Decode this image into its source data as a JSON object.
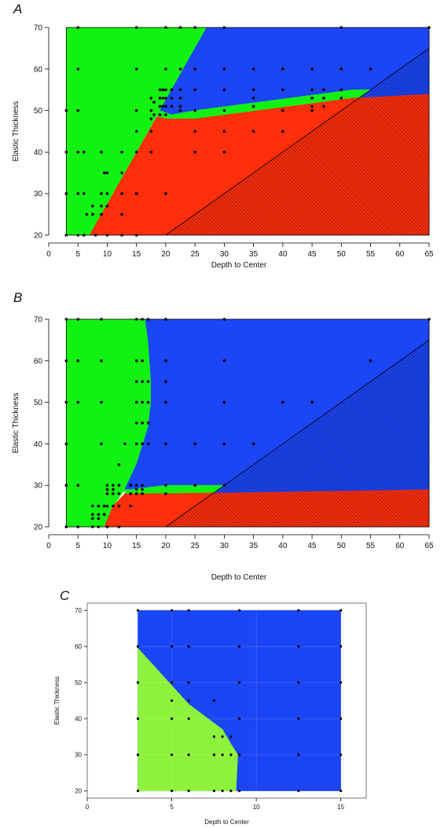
{
  "figure": {
    "panels": [
      {
        "letter": "A"
      },
      {
        "letter": "B"
      },
      {
        "letter": "C"
      }
    ]
  },
  "colors": {
    "green": "#12f212",
    "blue": "#1c45f6",
    "red": "#ff2e0b",
    "light_green": "#8ef23c",
    "hatch_red": "#7a1a08",
    "hatch_blue": "#0d2277",
    "point": "#000000"
  },
  "chart_data": [
    {
      "type": "scatter",
      "panel": "A",
      "xlabel": "Depth to Center",
      "ylabel": "Elastic Thickness",
      "xlim": [
        0,
        65
      ],
      "ylim": [
        20,
        70
      ],
      "xticks": [
        0,
        5,
        10,
        15,
        20,
        25,
        30,
        35,
        40,
        45,
        50,
        55,
        60,
        65
      ],
      "yticks": [
        20,
        30,
        40,
        50,
        60,
        70
      ],
      "points": [
        [
          3,
          20
        ],
        [
          3,
          30
        ],
        [
          3,
          40
        ],
        [
          3,
          50
        ],
        [
          5,
          70
        ],
        [
          5,
          60
        ],
        [
          5,
          50
        ],
        [
          5,
          40
        ],
        [
          5,
          30
        ],
        [
          5,
          20
        ],
        [
          6,
          40
        ],
        [
          6,
          30
        ],
        [
          6,
          20
        ],
        [
          6.5,
          25
        ],
        [
          7.5,
          27
        ],
        [
          7.5,
          25
        ],
        [
          8,
          20
        ],
        [
          9,
          40
        ],
        [
          9,
          30
        ],
        [
          9,
          27
        ],
        [
          9,
          25
        ],
        [
          9.5,
          35
        ],
        [
          10,
          35
        ],
        [
          10,
          30
        ],
        [
          10,
          27
        ],
        [
          10,
          20
        ],
        [
          12.5,
          40
        ],
        [
          12.5,
          35
        ],
        [
          12.5,
          30
        ],
        [
          12.5,
          25
        ],
        [
          12.5,
          20
        ],
        [
          15,
          70
        ],
        [
          15,
          60
        ],
        [
          15,
          50
        ],
        [
          15,
          45
        ],
        [
          15,
          40
        ],
        [
          15,
          30
        ],
        [
          15,
          20
        ],
        [
          17.5,
          53
        ],
        [
          17.5,
          50
        ],
        [
          17.5,
          48
        ],
        [
          17.5,
          45
        ],
        [
          17.5,
          40
        ],
        [
          18,
          52
        ],
        [
          18,
          49
        ],
        [
          19,
          55
        ],
        [
          19,
          53
        ],
        [
          19,
          51
        ],
        [
          19,
          49
        ],
        [
          19.5,
          55
        ],
        [
          19.5,
          53
        ],
        [
          19.5,
          51
        ],
        [
          20,
          70
        ],
        [
          20,
          60
        ],
        [
          20,
          55
        ],
        [
          20,
          53
        ],
        [
          20,
          51
        ],
        [
          20,
          49
        ],
        [
          20,
          30
        ],
        [
          21,
          55
        ],
        [
          21,
          53
        ],
        [
          21,
          51
        ],
        [
          22.5,
          70
        ],
        [
          22.5,
          60
        ],
        [
          22.5,
          55
        ],
        [
          22.5,
          53
        ],
        [
          22.5,
          51
        ],
        [
          22.5,
          50
        ],
        [
          25,
          70
        ],
        [
          25,
          60
        ],
        [
          25,
          55
        ],
        [
          25,
          50
        ],
        [
          25,
          45
        ],
        [
          25,
          40
        ],
        [
          30,
          70
        ],
        [
          30,
          60
        ],
        [
          30,
          55
        ],
        [
          30,
          50
        ],
        [
          30,
          45
        ],
        [
          30,
          40
        ],
        [
          35,
          60
        ],
        [
          35,
          55
        ],
        [
          35,
          53
        ],
        [
          35,
          51
        ],
        [
          35,
          45
        ],
        [
          40,
          60
        ],
        [
          40,
          55
        ],
        [
          40,
          50
        ],
        [
          40,
          45
        ],
        [
          45,
          60
        ],
        [
          45,
          55
        ],
        [
          45,
          53
        ],
        [
          45,
          51
        ],
        [
          45,
          50
        ],
        [
          47,
          55
        ],
        [
          47,
          53
        ],
        [
          47,
          51
        ],
        [
          50,
          70
        ],
        [
          50,
          60
        ],
        [
          50,
          55
        ],
        [
          50,
          53
        ],
        [
          55,
          60
        ],
        [
          65,
          70
        ]
      ],
      "regions": [
        {
          "color": "green",
          "polygon": [
            [
              3,
              20
            ],
            [
              3,
              70
            ],
            [
              27,
              70
            ],
            [
              19,
              50
            ],
            [
              7,
              20
            ]
          ]
        },
        {
          "color": "blue",
          "polygon": [
            [
              27,
              70
            ],
            [
              65,
              70
            ],
            [
              65,
              55
            ],
            [
              52,
              55
            ],
            [
              25,
              50
            ],
            [
              21,
              49
            ],
            [
              19,
              50
            ]
          ]
        },
        {
          "color": "green",
          "polygon": [
            [
              19,
              50
            ],
            [
              21,
              49
            ],
            [
              25,
              50
            ],
            [
              52,
              55
            ],
            [
              65,
              55
            ],
            [
              65,
              54
            ],
            [
              52,
              53
            ],
            [
              25,
              48
            ],
            [
              20,
              48
            ],
            [
              18.5,
              48.5
            ]
          ]
        },
        {
          "color": "red",
          "polygon": [
            [
              7,
              20
            ],
            [
              18.5,
              48.5
            ],
            [
              20,
              48
            ],
            [
              25,
              48
            ],
            [
              52,
              53
            ],
            [
              65,
              54
            ],
            [
              65,
              20
            ]
          ]
        }
      ],
      "hatched_triangle": {
        "polygon": [
          [
            20,
            20
          ],
          [
            65,
            20
          ],
          [
            65,
            65
          ]
        ]
      }
    },
    {
      "type": "scatter",
      "panel": "B",
      "xlabel": "Depth to Center",
      "ylabel": "Elastic Thickness",
      "xlim": [
        0,
        65
      ],
      "ylim": [
        20,
        70
      ],
      "xticks": [
        0,
        5,
        10,
        15,
        20,
        25,
        30,
        35,
        40,
        45,
        50,
        55,
        60,
        65
      ],
      "yticks": [
        20,
        30,
        40,
        50,
        60,
        70
      ],
      "points": [
        [
          3,
          70
        ],
        [
          3,
          60
        ],
        [
          3,
          50
        ],
        [
          3,
          40
        ],
        [
          3,
          30
        ],
        [
          3,
          20
        ],
        [
          5,
          70
        ],
        [
          5,
          60
        ],
        [
          5,
          50
        ],
        [
          5,
          30
        ],
        [
          5,
          20
        ],
        [
          7.5,
          25
        ],
        [
          7.5,
          23
        ],
        [
          7.5,
          22
        ],
        [
          7.5,
          20
        ],
        [
          8.5,
          25
        ],
        [
          8.5,
          23
        ],
        [
          8.5,
          22
        ],
        [
          8.5,
          20
        ],
        [
          9,
          70
        ],
        [
          9,
          60
        ],
        [
          9,
          50
        ],
        [
          9,
          40
        ],
        [
          9.5,
          25
        ],
        [
          9.5,
          23
        ],
        [
          10,
          30
        ],
        [
          10,
          29
        ],
        [
          10,
          28
        ],
        [
          10,
          25
        ],
        [
          10,
          20
        ],
        [
          11,
          30
        ],
        [
          11,
          29
        ],
        [
          11,
          28
        ],
        [
          11,
          25
        ],
        [
          12,
          35
        ],
        [
          12,
          30
        ],
        [
          12,
          28
        ],
        [
          12,
          25
        ],
        [
          12,
          20
        ],
        [
          13,
          40
        ],
        [
          14,
          30
        ],
        [
          14,
          28
        ],
        [
          14,
          25
        ],
        [
          15,
          70
        ],
        [
          15,
          60
        ],
        [
          15,
          55
        ],
        [
          15,
          50
        ],
        [
          15,
          45
        ],
        [
          15,
          40
        ],
        [
          15,
          30
        ],
        [
          15,
          29
        ],
        [
          15,
          28
        ],
        [
          16,
          70
        ],
        [
          16,
          60
        ],
        [
          16,
          55
        ],
        [
          16,
          50
        ],
        [
          16,
          45
        ],
        [
          16,
          40
        ],
        [
          16,
          30
        ],
        [
          16,
          29
        ],
        [
          16,
          28
        ],
        [
          17,
          70
        ],
        [
          17,
          55
        ],
        [
          17,
          50
        ],
        [
          17,
          45
        ],
        [
          17,
          40
        ],
        [
          20,
          70
        ],
        [
          20,
          60
        ],
        [
          20,
          55
        ],
        [
          20,
          50
        ],
        [
          20,
          40
        ],
        [
          20,
          30
        ],
        [
          20,
          28
        ],
        [
          25,
          40
        ],
        [
          25,
          30
        ],
        [
          30,
          70
        ],
        [
          30,
          60
        ],
        [
          30,
          50
        ],
        [
          30,
          40
        ],
        [
          30,
          30
        ],
        [
          35,
          40
        ],
        [
          40,
          50
        ],
        [
          45,
          50
        ],
        [
          55,
          60
        ],
        [
          65,
          70
        ]
      ],
      "regions": [
        {
          "color": "green",
          "polygon": [
            [
              3,
              20
            ],
            [
              3,
              70
            ],
            [
              16.5,
              70
            ],
            [
              17,
              65
            ],
            [
              17.5,
              55
            ],
            [
              17.5,
              50
            ],
            [
              17,
              44
            ],
            [
              15,
              35
            ],
            [
              14,
              32
            ],
            [
              13,
              29
            ],
            [
              11,
              25
            ],
            [
              9.5,
              20
            ]
          ]
        },
        {
          "color": "blue",
          "polygon": [
            [
              16.5,
              70
            ],
            [
              65,
              70
            ],
            [
              65,
              30
            ],
            [
              20,
              30
            ],
            [
              14,
              29
            ],
            [
              13,
              29
            ],
            [
              14,
              32
            ],
            [
              15,
              35
            ],
            [
              17,
              44
            ],
            [
              17.5,
              50
            ],
            [
              17.5,
              55
            ],
            [
              17,
              65
            ]
          ]
        },
        {
          "color": "green",
          "polygon": [
            [
              13,
              29
            ],
            [
              14,
              29
            ],
            [
              20,
              30
            ],
            [
              65,
              30
            ],
            [
              65,
              29
            ],
            [
              20,
              28
            ],
            [
              14,
              28
            ],
            [
              13,
              28
            ]
          ]
        },
        {
          "color": "red",
          "polygon": [
            [
              9.5,
              20
            ],
            [
              11,
              25
            ],
            [
              13,
              28
            ],
            [
              14,
              28
            ],
            [
              20,
              28
            ],
            [
              65,
              29
            ],
            [
              65,
              20
            ]
          ]
        }
      ],
      "hatched_triangle": {
        "polygon": [
          [
            20,
            20
          ],
          [
            65,
            20
          ],
          [
            65,
            65
          ]
        ]
      }
    },
    {
      "type": "scatter",
      "panel": "C",
      "xlabel": "Depth to Center",
      "ylabel": "Elastic Thickness",
      "xlim": [
        0,
        16.5
      ],
      "ylim": [
        18,
        72
      ],
      "xticks": [
        0,
        5,
        10,
        15
      ],
      "yticks": [
        20,
        30,
        40,
        50,
        60,
        70
      ],
      "points": [
        [
          3,
          70
        ],
        [
          3,
          60
        ],
        [
          3,
          50
        ],
        [
          3,
          40
        ],
        [
          3,
          30
        ],
        [
          3,
          20
        ],
        [
          5,
          70
        ],
        [
          5,
          60
        ],
        [
          5,
          50
        ],
        [
          5,
          45
        ],
        [
          5,
          40
        ],
        [
          5,
          30
        ],
        [
          5,
          20
        ],
        [
          6,
          70
        ],
        [
          6,
          60
        ],
        [
          6,
          50
        ],
        [
          6,
          45
        ],
        [
          6,
          40
        ],
        [
          6,
          30
        ],
        [
          6,
          20
        ],
        [
          7.5,
          45
        ],
        [
          7.5,
          35
        ],
        [
          7.5,
          30
        ],
        [
          7.5,
          20
        ],
        [
          8,
          35
        ],
        [
          8,
          30
        ],
        [
          8,
          20
        ],
        [
          8.5,
          35
        ],
        [
          8.5,
          30
        ],
        [
          8.5,
          20
        ],
        [
          9,
          70
        ],
        [
          9,
          60
        ],
        [
          9,
          50
        ],
        [
          9,
          40
        ],
        [
          9,
          30
        ],
        [
          9,
          20
        ],
        [
          12.5,
          70
        ],
        [
          12.5,
          60
        ],
        [
          12.5,
          50
        ],
        [
          12.5,
          40
        ],
        [
          12.5,
          30
        ],
        [
          12.5,
          20
        ],
        [
          15,
          70
        ],
        [
          15,
          60
        ],
        [
          15,
          50
        ],
        [
          15,
          40
        ],
        [
          15,
          30
        ],
        [
          15,
          20
        ]
      ],
      "regions": [
        {
          "color": "blue",
          "polygon": [
            [
              3,
              20
            ],
            [
              3,
              70
            ],
            [
              15,
              70
            ],
            [
              15,
              20
            ]
          ]
        },
        {
          "color": "light_green",
          "polygon": [
            [
              3,
              20
            ],
            [
              3,
              59.5
            ],
            [
              6,
              44
            ],
            [
              8,
              37
            ],
            [
              8.5,
              33
            ],
            [
              8.9,
              30
            ],
            [
              8.8,
              20
            ]
          ]
        }
      ]
    }
  ]
}
